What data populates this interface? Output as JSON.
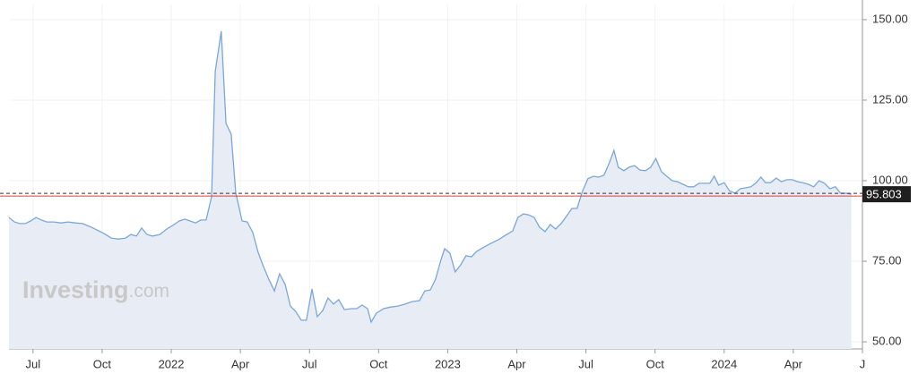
{
  "chart_data": {
    "type": "area",
    "x": [
      2021.413,
      2021.433,
      2021.452,
      2021.472,
      2021.491,
      2021.511,
      2021.53,
      2021.55,
      2021.575,
      2021.601,
      2021.627,
      2021.653,
      2021.679,
      2021.705,
      2021.731,
      2021.757,
      2021.783,
      2021.809,
      2021.835,
      2021.854,
      2021.874,
      2021.893,
      2021.912,
      2021.932,
      2021.958,
      2021.984,
      2022.01,
      2022.029,
      2022.049,
      2022.068,
      2022.088,
      2022.107,
      2022.126,
      2022.146,
      2022.159,
      2022.181,
      2022.198,
      2022.217,
      2022.233,
      2022.256,
      2022.275,
      2022.295,
      2022.314,
      2022.334,
      2022.353,
      2022.373,
      2022.392,
      2022.412,
      2022.431,
      2022.45,
      2022.47,
      2022.489,
      2022.509,
      2022.528,
      2022.548,
      2022.567,
      2022.587,
      2022.606,
      2022.626,
      2022.651,
      2022.671,
      2022.69,
      2022.71,
      2022.723,
      2022.742,
      2022.768,
      2022.794,
      2022.82,
      2022.846,
      2022.872,
      2022.898,
      2022.917,
      2022.937,
      2022.956,
      2022.976,
      2022.989,
      2023.008,
      2023.027,
      2023.047,
      2023.066,
      2023.086,
      2023.105,
      2023.131,
      2023.157,
      2023.183,
      2023.209,
      2023.235,
      2023.254,
      2023.274,
      2023.293,
      2023.313,
      2023.332,
      2023.352,
      2023.371,
      2023.39,
      2023.41,
      2023.429,
      2023.449,
      2023.468,
      2023.488,
      2023.507,
      2023.527,
      2023.546,
      2023.565,
      2023.585,
      2023.601,
      2023.617,
      2023.637,
      2023.656,
      2023.676,
      2023.695,
      2023.715,
      2023.734,
      2023.753,
      2023.773,
      2023.792,
      2023.812,
      2023.831,
      2023.851,
      2023.87,
      2023.89,
      2023.909,
      2023.928,
      2023.948,
      2023.964,
      2023.98,
      2024.0,
      2024.019,
      2024.039,
      2024.058,
      2024.078,
      2024.097,
      2024.116,
      2024.133,
      2024.149,
      2024.168,
      2024.188,
      2024.207,
      2024.227,
      2024.246,
      2024.266,
      2024.285,
      2024.304,
      2024.324,
      2024.343,
      2024.363,
      2024.382,
      2024.402,
      2024.421,
      2024.441,
      2024.46
    ],
    "values": [
      88.6,
      87.2,
      86.7,
      86.7,
      87.5,
      88.6,
      87.8,
      87.2,
      87.2,
      86.9,
      87.2,
      86.9,
      86.7,
      85.8,
      84.7,
      83.6,
      82.2,
      81.9,
      82.2,
      83.3,
      82.8,
      85.3,
      83.3,
      82.8,
      83.3,
      85,
      86.4,
      87.5,
      88.1,
      87.5,
      86.9,
      87.8,
      87.8,
      95,
      133.9,
      146.4,
      117.8,
      114.4,
      96.4,
      87.5,
      87.2,
      83.9,
      77.8,
      73.3,
      69.4,
      65.8,
      71.1,
      67.8,
      61.1,
      59.4,
      56.7,
      56.7,
      66.4,
      57.8,
      59.7,
      63.6,
      61.7,
      63.1,
      60,
      60.3,
      60.3,
      61.4,
      60.3,
      56.1,
      58.9,
      60.3,
      60.8,
      61.1,
      61.7,
      62.5,
      62.8,
      65.8,
      66.1,
      69.4,
      75.6,
      78.9,
      77.5,
      71.7,
      73.9,
      76.7,
      76.4,
      78.1,
      79.4,
      80.6,
      81.7,
      83.1,
      84.4,
      88.6,
      89.7,
      89.4,
      88.6,
      85.6,
      84.2,
      86.4,
      85,
      86.7,
      88.9,
      91.4,
      91.4,
      96.9,
      100.6,
      101.4,
      101.1,
      101.7,
      105.6,
      109.4,
      104.2,
      103.1,
      104.2,
      104.7,
      103.3,
      103.1,
      104.2,
      106.9,
      102.8,
      101.4,
      100,
      99.7,
      98.9,
      98.1,
      98.1,
      99.2,
      99.2,
      99.2,
      101.4,
      98.6,
      99.4,
      96.9,
      96.1,
      97.5,
      97.8,
      98.1,
      99.4,
      101.1,
      99.4,
      99.4,
      100.8,
      99.7,
      100.3,
      100.3,
      99.7,
      99.4,
      98.9,
      98.1,
      100,
      99.2,
      97.5,
      98.1,
      96.1,
      96.1,
      95.8
    ],
    "color": "#7aa7d8",
    "fill": "#e8edf5",
    "xlim": [
      2021.413,
      2024.5
    ],
    "xticks": [
      {
        "value": 2021.5,
        "label": "Jul"
      },
      {
        "value": 2021.75,
        "label": "Oct"
      },
      2022,
      {
        "value": 2022.25,
        "label": "Apr"
      },
      {
        "value": 2022.5,
        "label": "Jul"
      },
      {
        "value": 2022.75,
        "label": "Oct"
      },
      2023,
      {
        "value": 2023.25,
        "label": "Apr"
      },
      {
        "value": 2023.5,
        "label": "Jul"
      },
      {
        "value": 2023.75,
        "label": "Oct"
      },
      2024,
      {
        "value": 2024.25,
        "label": "Apr"
      },
      {
        "value": 2024.5,
        "label": "J"
      }
    ],
    "ylim": [
      47.8,
      154.7
    ],
    "yticks": [
      {
        "value": 50,
        "label": "50.00"
      },
      {
        "value": 75,
        "label": "75.00"
      },
      {
        "value": 100,
        "label": "100.00"
      },
      {
        "value": 125,
        "label": "125.00"
      },
      {
        "value": 150,
        "label": "150.00"
      }
    ],
    "grid": true,
    "last_price": 95.803
  },
  "watermark": {
    "brand": "Investing",
    "suffix": ".com"
  }
}
